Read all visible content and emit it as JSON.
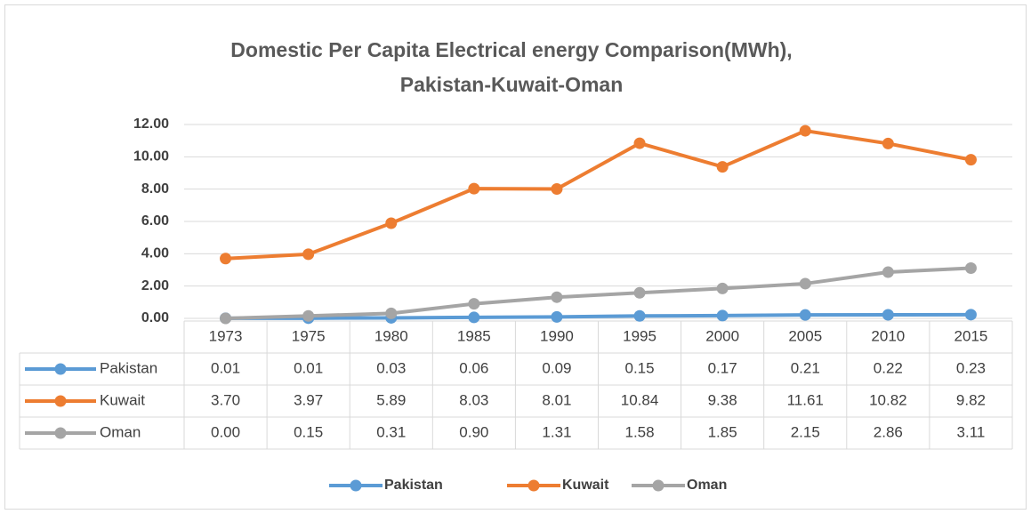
{
  "chart_data": {
    "type": "line",
    "title": [
      "Domestic Per Capita Electrical energy Comparison(MWh),",
      "Pakistan-Kuwait-Oman"
    ],
    "categories": [
      "1973",
      "1975",
      "1980",
      "1985",
      "1990",
      "1995",
      "2000",
      "2005",
      "2010",
      "2015"
    ],
    "series": [
      {
        "name": "Pakistan",
        "color": "#5b9bd5",
        "values": [
          0.01,
          0.01,
          0.03,
          0.06,
          0.09,
          0.15,
          0.17,
          0.21,
          0.22,
          0.23
        ],
        "value_labels": [
          "0.01",
          "0.01",
          "0.03",
          "0.06",
          "0.09",
          "0.15",
          "0.17",
          "0.21",
          "0.22",
          "0.23"
        ]
      },
      {
        "name": "Kuwait",
        "color": "#ed7d31",
        "values": [
          3.7,
          3.97,
          5.89,
          8.03,
          8.01,
          10.84,
          9.38,
          11.61,
          10.82,
          9.82
        ],
        "value_labels": [
          "3.70",
          "3.97",
          "5.89",
          "8.03",
          "8.01",
          "10.84",
          "9.38",
          "11.61",
          "10.82",
          "9.82"
        ]
      },
      {
        "name": "Oman",
        "color": "#a5a5a5",
        "values": [
          0,
          0.15,
          0.31,
          0.9,
          1.31,
          1.58,
          1.85,
          2.15,
          2.86,
          3.11
        ],
        "value_labels": [
          "0.00",
          "0.15",
          "0.31",
          "0.90",
          "1.31",
          "1.58",
          "1.85",
          "2.15",
          "2.86",
          "3.11"
        ]
      }
    ],
    "ylim": [
      0,
      12
    ],
    "yticks": [
      {
        "value": 0,
        "label": "0.00"
      },
      {
        "value": 2,
        "label": "2.00"
      },
      {
        "value": 4,
        "label": "4.00"
      },
      {
        "value": 6,
        "label": "6.00"
      },
      {
        "value": 8,
        "label": "8.00"
      },
      {
        "value": 10,
        "label": "10.00"
      },
      {
        "value": 12,
        "label": "12.00"
      }
    ],
    "grid": true,
    "legend": "bottom"
  }
}
